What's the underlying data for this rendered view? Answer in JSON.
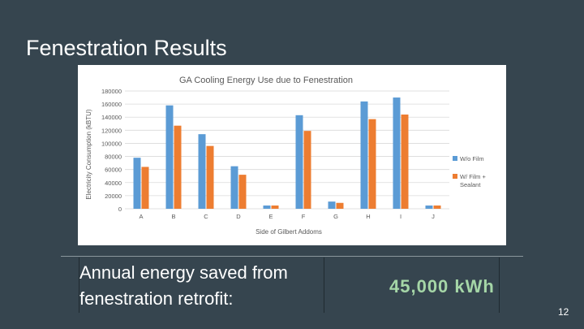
{
  "slide": {
    "title": "Fenestration Results",
    "caption_line1": "Annual energy saved from",
    "caption_line2": "fenestration retrofit:",
    "energy_saved": "45,000 kWh",
    "page_number": "12"
  },
  "colors": {
    "background": "#36454f",
    "accent_green": "#a5d6a7",
    "series_blue": "#5b9bd5",
    "series_orange": "#ed7d31"
  },
  "chart_data": {
    "type": "bar",
    "title": "GA Cooling Energy Use due to Fenestration",
    "xlabel": "Side of Gilbert Addoms",
    "ylabel": "Electricity Consumption (kBTU)",
    "categories": [
      "A",
      "B",
      "C",
      "D",
      "E",
      "F",
      "G",
      "H",
      "I",
      "J"
    ],
    "ylim": [
      0,
      180000
    ],
    "yticks": [
      0,
      20000,
      40000,
      60000,
      80000,
      100000,
      120000,
      140000,
      160000,
      180000
    ],
    "grid": true,
    "legend_position": "right",
    "series": [
      {
        "name": "W/o Film",
        "color": "#5b9bd5",
        "values": [
          78000,
          158000,
          114000,
          65000,
          5000,
          143000,
          11000,
          164000,
          170000,
          5000
        ]
      },
      {
        "name": "W/ Film + Sealant",
        "color": "#ed7d31",
        "values": [
          64000,
          127000,
          96000,
          52000,
          5000,
          119000,
          9000,
          137000,
          144000,
          5000
        ]
      }
    ]
  }
}
